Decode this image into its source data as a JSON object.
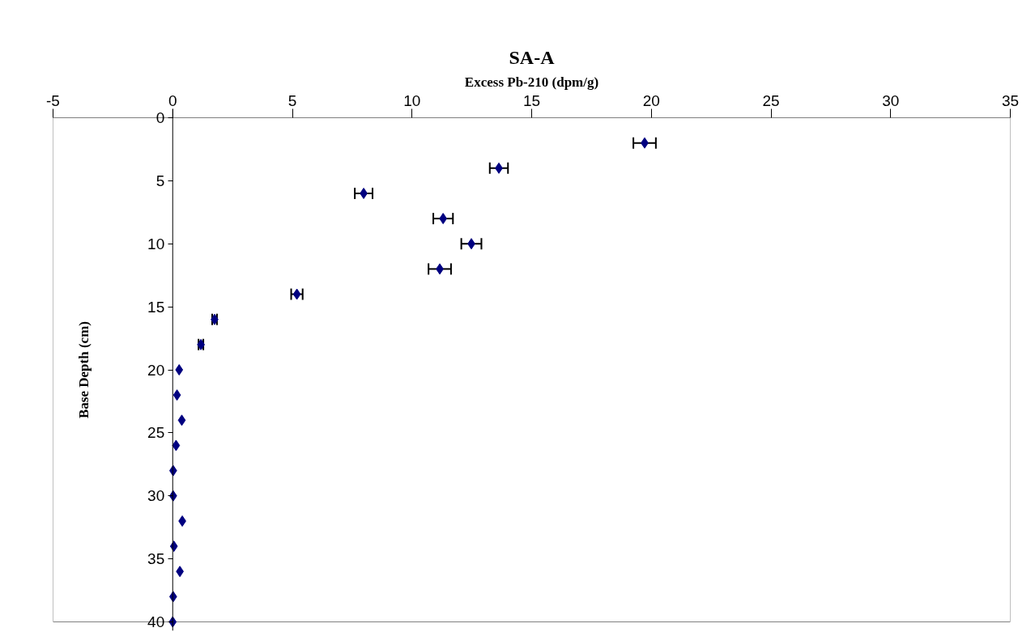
{
  "chart_data": {
    "type": "scatter",
    "title": "SA-A",
    "xlabel": "Excess Pb-210 (dpm/g)",
    "ylabel": "Base Depth (cm)",
    "marker": "diamond",
    "grid": false,
    "xlim": [
      -5,
      35
    ],
    "xticks": [
      -5,
      0,
      5,
      10,
      15,
      20,
      25,
      30,
      35
    ],
    "ylim": [
      40,
      0
    ],
    "yticks": [
      0,
      5,
      10,
      15,
      20,
      25,
      30,
      35,
      40
    ],
    "series": [
      {
        "color": "#000080",
        "x": [
          19.72,
          13.63,
          7.98,
          11.3,
          12.48,
          11.16,
          5.19,
          1.75,
          1.18,
          0.27,
          0.18,
          0.38,
          0.14,
          0.02,
          0.02,
          0.4,
          0.05,
          0.3,
          0.02,
          0.0
        ],
        "values": [
          2,
          4,
          6,
          8,
          10,
          12,
          14,
          16,
          18,
          20,
          22,
          24,
          26,
          28,
          30,
          32,
          34,
          36,
          38,
          40
        ],
        "xerrors": [
          0.47,
          0.38,
          0.37,
          0.41,
          0.42,
          0.47,
          0.24,
          0.1,
          0.1,
          null,
          null,
          null,
          null,
          null,
          null,
          null,
          null,
          null,
          null,
          null
        ]
      }
    ]
  }
}
